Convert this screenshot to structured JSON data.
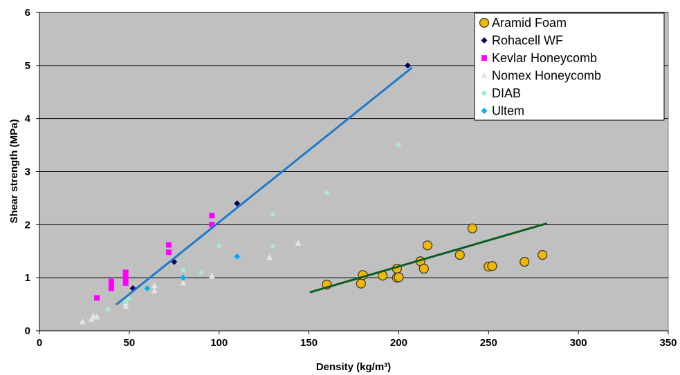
{
  "chart_data": {
    "type": "scatter",
    "xlabel": "Density (kg/m³)",
    "ylabel": "Shear strength (MPa)",
    "xlim": [
      0,
      350
    ],
    "ylim": [
      0,
      6
    ],
    "x_ticks": [
      "0",
      "50",
      "100",
      "150",
      "200",
      "250",
      "300",
      "350"
    ],
    "y_ticks": [
      "0",
      "1",
      "2",
      "3",
      "4",
      "5",
      "6"
    ],
    "grid": "horizontal",
    "background": "#c0c0c0",
    "legend_position": "top-right",
    "series": [
      {
        "name": "Aramid Foam",
        "marker": "circle",
        "color": "#f0b800",
        "points": [
          [
            160,
            0.87
          ],
          [
            179,
            0.89
          ],
          [
            180,
            1.05
          ],
          [
            191,
            1.04
          ],
          [
            199,
            1.17
          ],
          [
            199,
            1.0
          ],
          [
            200,
            1.01
          ],
          [
            212,
            1.31
          ],
          [
            214,
            1.17
          ],
          [
            216,
            1.61
          ],
          [
            234,
            1.43
          ],
          [
            241,
            1.93
          ],
          [
            250,
            1.21
          ],
          [
            252,
            1.22
          ],
          [
            270,
            1.3
          ],
          [
            280,
            1.43
          ]
        ]
      },
      {
        "name": "Rohacell WF",
        "marker": "diamond",
        "color": "#00005c",
        "points": [
          [
            52,
            0.8
          ],
          [
            75,
            1.3
          ],
          [
            110,
            2.4
          ],
          [
            205,
            5.0
          ]
        ]
      },
      {
        "name": "Kevlar Honeycomb",
        "marker": "square",
        "color": "#ff00ff",
        "points": [
          [
            32,
            0.62
          ],
          [
            40,
            0.8
          ],
          [
            40,
            0.85
          ],
          [
            40,
            0.93
          ],
          [
            48,
            0.9
          ],
          [
            48,
            1.0
          ],
          [
            48,
            1.1
          ],
          [
            72,
            1.48
          ],
          [
            72,
            1.62
          ],
          [
            96,
            2.0
          ],
          [
            96,
            2.17
          ]
        ]
      },
      {
        "name": "Nomex Honeycomb",
        "marker": "triangle",
        "color": "#e4e4e4",
        "points": [
          [
            24,
            0.17
          ],
          [
            29,
            0.22
          ],
          [
            30,
            0.28
          ],
          [
            32,
            0.26
          ],
          [
            48,
            0.46
          ],
          [
            48,
            0.52
          ],
          [
            64,
            0.75
          ],
          [
            64,
            0.85
          ],
          [
            80,
            0.9
          ],
          [
            96,
            1.03
          ],
          [
            128,
            1.38
          ],
          [
            144,
            1.65
          ]
        ]
      },
      {
        "name": "DIAB",
        "marker": "circle",
        "color": "#a8e8c8",
        "points": [
          [
            38,
            0.4
          ],
          [
            48,
            0.55
          ],
          [
            50,
            0.6
          ],
          [
            60,
            0.8
          ],
          [
            80,
            1.15
          ],
          [
            90,
            1.1
          ],
          [
            100,
            1.6
          ],
          [
            130,
            1.6
          ],
          [
            130,
            2.2
          ],
          [
            160,
            2.6
          ],
          [
            200,
            3.5
          ]
        ]
      },
      {
        "name": "Ultem",
        "marker": "diamond",
        "color": "#00b0f0",
        "points": [
          [
            60,
            0.8
          ],
          [
            80,
            1.0
          ],
          [
            110,
            1.4
          ]
        ]
      }
    ],
    "trendlines": [
      {
        "color": "#1f7ac8",
        "from": [
          43,
          0.5
        ],
        "to": [
          207,
          4.95
        ]
      },
      {
        "color": "#0a5c24",
        "from": [
          151,
          0.73
        ],
        "to": [
          282,
          2.02
        ]
      }
    ]
  }
}
